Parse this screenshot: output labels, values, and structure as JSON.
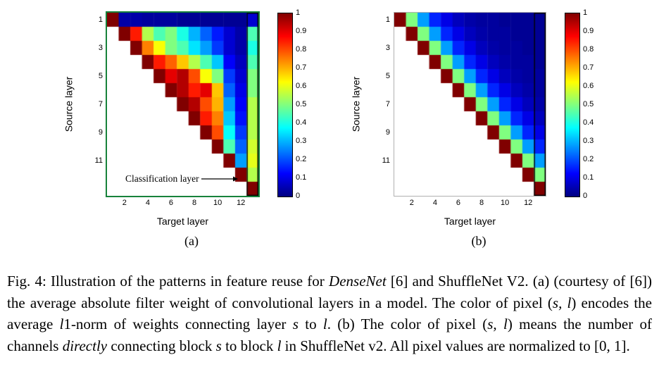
{
  "colorbar": {
    "ticks": [
      "1",
      "0.9",
      "0.8",
      "0.7",
      "0.6",
      "0.5",
      "0.4",
      "0.3",
      "0.2",
      "0.1",
      "0"
    ]
  },
  "chart_data": [
    {
      "type": "heatmap",
      "label": "(a)",
      "xlabel": "Target layer",
      "ylabel": "Source layer",
      "x_ticks": [
        2,
        4,
        6,
        8,
        10,
        12
      ],
      "y_ticks": [
        1,
        3,
        5,
        7,
        9,
        11
      ],
      "n": 13,
      "colormap": "jet",
      "vmin": 0,
      "vmax": 1,
      "frame_color": "#17823b",
      "classification_box": true,
      "annotation": "Classification layer",
      "matrix": [
        [
          1.0,
          0.04,
          0.04,
          0.03,
          0.03,
          0.03,
          0.02,
          0.02,
          0.02,
          0.02,
          0.02,
          0.02,
          0.08
        ],
        [
          null,
          1.0,
          0.85,
          0.55,
          0.45,
          0.5,
          0.4,
          0.3,
          0.22,
          0.15,
          0.08,
          0.04,
          0.45
        ],
        [
          null,
          null,
          1.0,
          0.75,
          0.62,
          0.5,
          0.45,
          0.35,
          0.28,
          0.18,
          0.08,
          0.04,
          0.4
        ],
        [
          null,
          null,
          null,
          1.0,
          0.85,
          0.78,
          0.68,
          0.55,
          0.45,
          0.32,
          0.12,
          0.06,
          0.45
        ],
        [
          null,
          null,
          null,
          null,
          1.0,
          0.9,
          0.95,
          0.8,
          0.62,
          0.5,
          0.18,
          0.08,
          0.5
        ],
        [
          null,
          null,
          null,
          null,
          null,
          1.0,
          0.95,
          0.85,
          0.9,
          0.68,
          0.22,
          0.1,
          0.5
        ],
        [
          null,
          null,
          null,
          null,
          null,
          null,
          1.0,
          0.95,
          0.8,
          0.7,
          0.28,
          0.12,
          0.55
        ],
        [
          null,
          null,
          null,
          null,
          null,
          null,
          null,
          1.0,
          0.85,
          0.75,
          0.32,
          0.14,
          0.55
        ],
        [
          null,
          null,
          null,
          null,
          null,
          null,
          null,
          null,
          1.0,
          0.8,
          0.38,
          0.18,
          0.55
        ],
        [
          null,
          null,
          null,
          null,
          null,
          null,
          null,
          null,
          null,
          1.0,
          0.45,
          0.22,
          0.58
        ],
        [
          null,
          null,
          null,
          null,
          null,
          null,
          null,
          null,
          null,
          null,
          1.0,
          0.28,
          0.6
        ],
        [
          null,
          null,
          null,
          null,
          null,
          null,
          null,
          null,
          null,
          null,
          null,
          1.0,
          0.55
        ],
        [
          null,
          null,
          null,
          null,
          null,
          null,
          null,
          null,
          null,
          null,
          null,
          null,
          1.0
        ]
      ]
    },
    {
      "type": "heatmap",
      "label": "(b)",
      "xlabel": "Target layer",
      "ylabel": "Source layer",
      "x_ticks": [
        2,
        4,
        6,
        8,
        10,
        12
      ],
      "y_ticks": [
        1,
        3,
        5,
        7,
        9,
        11
      ],
      "n": 13,
      "colormap": "jet",
      "vmin": 0,
      "vmax": 1,
      "frame_color": null,
      "classification_box": true,
      "annotation": null,
      "matrix": [
        [
          1.0,
          0.5,
          0.28,
          0.16,
          0.1,
          0.06,
          0.04,
          0.03,
          0.03,
          0.02,
          0.02,
          0.02,
          0.02
        ],
        [
          null,
          1.0,
          0.5,
          0.28,
          0.16,
          0.1,
          0.06,
          0.04,
          0.03,
          0.03,
          0.02,
          0.02,
          0.02
        ],
        [
          null,
          null,
          1.0,
          0.5,
          0.28,
          0.16,
          0.1,
          0.06,
          0.04,
          0.03,
          0.03,
          0.02,
          0.02
        ],
        [
          null,
          null,
          null,
          1.0,
          0.5,
          0.28,
          0.16,
          0.1,
          0.06,
          0.04,
          0.03,
          0.03,
          0.02
        ],
        [
          null,
          null,
          null,
          null,
          1.0,
          0.5,
          0.28,
          0.16,
          0.1,
          0.06,
          0.04,
          0.03,
          0.03
        ],
        [
          null,
          null,
          null,
          null,
          null,
          1.0,
          0.5,
          0.28,
          0.16,
          0.1,
          0.06,
          0.04,
          0.03
        ],
        [
          null,
          null,
          null,
          null,
          null,
          null,
          1.0,
          0.5,
          0.28,
          0.16,
          0.1,
          0.06,
          0.04
        ],
        [
          null,
          null,
          null,
          null,
          null,
          null,
          null,
          1.0,
          0.5,
          0.28,
          0.16,
          0.1,
          0.06
        ],
        [
          null,
          null,
          null,
          null,
          null,
          null,
          null,
          null,
          1.0,
          0.5,
          0.28,
          0.16,
          0.1
        ],
        [
          null,
          null,
          null,
          null,
          null,
          null,
          null,
          null,
          null,
          1.0,
          0.5,
          0.28,
          0.16
        ],
        [
          null,
          null,
          null,
          null,
          null,
          null,
          null,
          null,
          null,
          null,
          1.0,
          0.5,
          0.28
        ],
        [
          null,
          null,
          null,
          null,
          null,
          null,
          null,
          null,
          null,
          null,
          null,
          1.0,
          0.5
        ],
        [
          null,
          null,
          null,
          null,
          null,
          null,
          null,
          null,
          null,
          null,
          null,
          null,
          1.0
        ]
      ]
    }
  ],
  "caption": {
    "segments": [
      {
        "t": "Fig. 4: Illustration of the patterns in feature reuse for "
      },
      {
        "t": "DenseNet",
        "i": true
      },
      {
        "t": " [6] and ShuffleNet V2. (a) (courtesy of [6]) the average absolute filter weight of convolutional layers in a model. The color of pixel ("
      },
      {
        "t": "s, l",
        "i": true
      },
      {
        "t": ") encodes the average "
      },
      {
        "t": "l",
        "i": true
      },
      {
        "t": "1-norm of weights connecting layer "
      },
      {
        "t": "s",
        "i": true
      },
      {
        "t": " to "
      },
      {
        "t": "l",
        "i": true
      },
      {
        "t": ". (b) The color of pixel ("
      },
      {
        "t": "s, l",
        "i": true
      },
      {
        "t": ") means the number of channels "
      },
      {
        "t": "directly",
        "i": true
      },
      {
        "t": " connecting block "
      },
      {
        "t": "s",
        "i": true
      },
      {
        "t": " to block "
      },
      {
        "t": "l",
        "i": true
      },
      {
        "t": " in ShuffleNet v2. All pixel values are normalized to [0, 1]."
      }
    ]
  }
}
